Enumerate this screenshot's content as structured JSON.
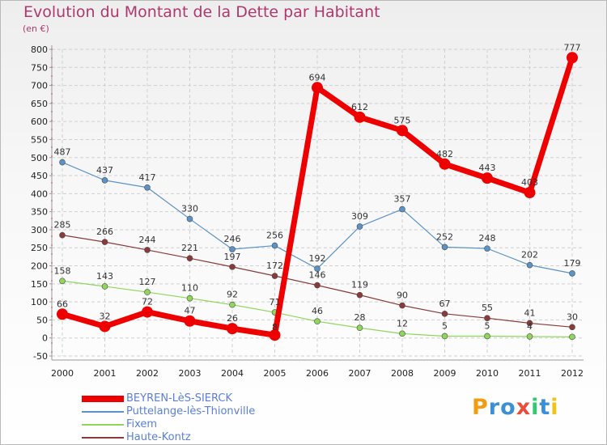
{
  "title": "Evolution du Montant de la Dette par Habitant",
  "unit_label": "(en €)",
  "logo": {
    "text": "Proxiti",
    "letters": [
      "P",
      "r",
      "o",
      "x",
      "i",
      "t",
      "i"
    ],
    "colors": [
      "#f39c12",
      "#3a8fd6",
      "#3a8fd6",
      "#e74c3c",
      "#2ecc71",
      "#3a8fd6",
      "#f1c40f"
    ]
  },
  "chart_data": {
    "type": "line",
    "title": "Evolution du Montant de la Dette par Habitant",
    "ylabel": "(en €)",
    "xlabel": "",
    "x": [
      "2000",
      "2001",
      "2002",
      "2003",
      "2004",
      "2005",
      "2006",
      "2007",
      "2008",
      "2009",
      "2010",
      "2011",
      "2012"
    ],
    "ylim": [
      -50,
      800
    ],
    "yticks": [
      -50,
      0,
      50,
      100,
      150,
      200,
      250,
      300,
      350,
      400,
      450,
      500,
      550,
      600,
      650,
      700,
      750,
      800
    ],
    "ytick_labels": [
      "-50",
      "0",
      "50",
      "100",
      "150",
      "200",
      "250",
      "300",
      "350",
      "400",
      "450",
      "500",
      "550",
      "600",
      "650",
      "700",
      "750",
      "800"
    ],
    "grid": true,
    "legend_placement": "bottom-left",
    "series": [
      {
        "name": "BEYREN-LèS-SIERCK",
        "color": "#ee0000",
        "stroke": 7,
        "marker": 7,
        "values": [
          66,
          32,
          72,
          47,
          26,
          8,
          694,
          612,
          575,
          482,
          443,
          403,
          777
        ],
        "labels": [
          "66",
          "32",
          "72",
          "47",
          "26",
          "8",
          "694",
          "612",
          "575",
          "482",
          "443",
          "403",
          "777"
        ]
      },
      {
        "name": "Puttelange-lès-Thionville",
        "color": "#5b93c7",
        "stroke": 1.2,
        "marker": 3.5,
        "values": [
          487,
          437,
          417,
          330,
          246,
          256,
          192,
          309,
          357,
          252,
          248,
          202,
          179
        ],
        "labels": [
          "487",
          "437",
          "417",
          "330",
          "246",
          "256",
          "192",
          "309",
          "357",
          "252",
          "248",
          "202",
          "179"
        ]
      },
      {
        "name": "Fixem",
        "color": "#8fd65a",
        "stroke": 1.2,
        "marker": 3.5,
        "values": [
          158,
          143,
          127,
          110,
          92,
          71,
          46,
          28,
          12,
          5,
          5,
          4,
          3
        ],
        "labels": [
          "158",
          "143",
          "127",
          "110",
          "92",
          "71",
          "46",
          "28",
          "12",
          "5",
          "5",
          "4",
          ""
        ]
      },
      {
        "name": "Haute-Kontz",
        "color": "#8a3a3a",
        "stroke": 1.2,
        "marker": 3.5,
        "values": [
          285,
          266,
          244,
          221,
          197,
          172,
          146,
          119,
          90,
          67,
          55,
          41,
          30
        ],
        "labels": [
          "285",
          "266",
          "244",
          "221",
          "197",
          "172",
          "146",
          "119",
          "90",
          "67",
          "55",
          "41",
          "30"
        ]
      }
    ]
  }
}
